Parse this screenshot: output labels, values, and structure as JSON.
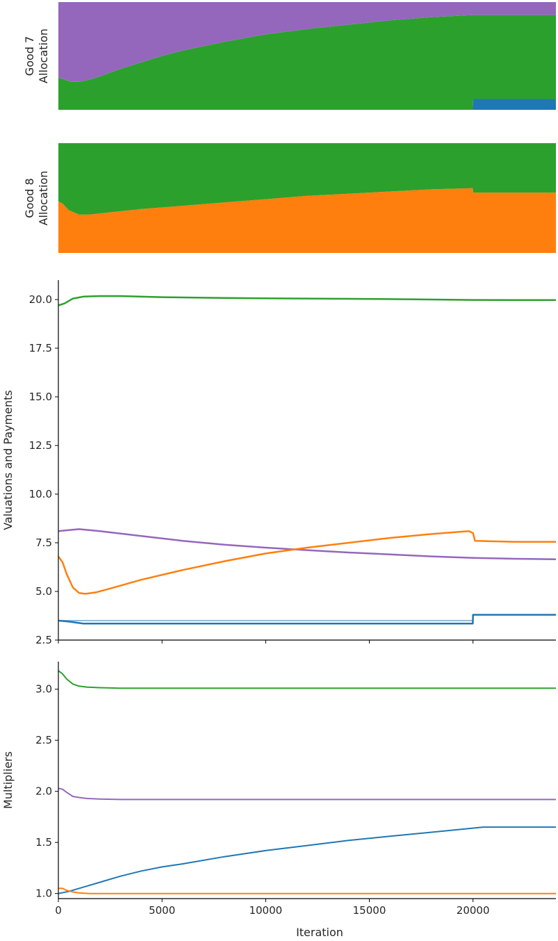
{
  "chart_data": [
    {
      "type": "area",
      "stacked": true,
      "normalized": true,
      "ylabel_lines": [
        "Good 7",
        "Allocation"
      ],
      "x": [
        0,
        300,
        600,
        1000,
        1500,
        2000,
        3000,
        4000,
        5000,
        6000,
        8000,
        10000,
        12000,
        14000,
        16000,
        18000,
        19990,
        20010,
        21000,
        22000,
        23000,
        24000
      ],
      "xlim": [
        0,
        24000
      ],
      "ylim": [
        0,
        1
      ],
      "axes_visible": false,
      "series": [
        {
          "color": "#1f77b4",
          "values": [
            0,
            0,
            0,
            0,
            0,
            0,
            0,
            0,
            0,
            0,
            0,
            0,
            0,
            0,
            0,
            0,
            0,
            0.1,
            0.1,
            0.1,
            0.1,
            0.1
          ]
        },
        {
          "color": "#2ca02c",
          "values": [
            0.3,
            0.28,
            0.26,
            0.26,
            0.28,
            0.31,
            0.38,
            0.44,
            0.5,
            0.55,
            0.63,
            0.7,
            0.75,
            0.79,
            0.83,
            0.86,
            0.88,
            0.78,
            0.78,
            0.78,
            0.78,
            0.78
          ]
        },
        {
          "color": "#9467bd",
          "values": [
            0.7,
            0.72,
            0.74,
            0.74,
            0.72,
            0.69,
            0.62,
            0.56,
            0.5,
            0.45,
            0.37,
            0.3,
            0.25,
            0.21,
            0.17,
            0.14,
            0.12,
            0.12,
            0.12,
            0.12,
            0.12,
            0.12
          ]
        }
      ]
    },
    {
      "type": "area",
      "stacked": true,
      "normalized": true,
      "ylabel_lines": [
        "Good 8",
        "Allocation"
      ],
      "x": [
        0,
        200,
        500,
        1000,
        1500,
        2500,
        4000,
        6000,
        8000,
        10000,
        12000,
        14000,
        16000,
        18000,
        19990,
        20010,
        22000,
        24000
      ],
      "xlim": [
        0,
        24000
      ],
      "ylim": [
        0,
        1
      ],
      "axes_visible": false,
      "series": [
        {
          "color": "#ff7f0e",
          "values": [
            0.47,
            0.45,
            0.39,
            0.35,
            0.35,
            0.37,
            0.4,
            0.43,
            0.46,
            0.49,
            0.52,
            0.54,
            0.56,
            0.58,
            0.59,
            0.55,
            0.55,
            0.55
          ]
        },
        {
          "color": "#2ca02c",
          "values": [
            0.53,
            0.55,
            0.61,
            0.65,
            0.65,
            0.63,
            0.6,
            0.57,
            0.54,
            0.51,
            0.48,
            0.46,
            0.44,
            0.42,
            0.41,
            0.45,
            0.45,
            0.45
          ]
        }
      ]
    },
    {
      "type": "line",
      "ylabel": "Valuations and Payments",
      "xlim": [
        0,
        24000
      ],
      "ylim": [
        2.5,
        21
      ],
      "yticks": [
        "2.5",
        "5.0",
        "7.5",
        "10.0",
        "12.5",
        "15.0",
        "17.5",
        "20.0"
      ],
      "show_xtick_labels": false,
      "series": [
        {
          "color": "#2ca02c",
          "width": 2.5,
          "x": [
            0,
            300,
            700,
            1200,
            2000,
            3000,
            5000,
            8000,
            12000,
            16000,
            20000,
            22000,
            24000
          ],
          "values": [
            19.7,
            19.8,
            20.05,
            20.15,
            20.18,
            20.18,
            20.12,
            20.08,
            20.05,
            20.02,
            19.98,
            19.97,
            19.97
          ]
        },
        {
          "color": "#9467bd",
          "width": 2.5,
          "x": [
            0,
            500,
            1000,
            2000,
            4000,
            6000,
            8000,
            10000,
            12000,
            14000,
            16000,
            18000,
            20000,
            22000,
            24000
          ],
          "values": [
            8.1,
            8.15,
            8.2,
            8.1,
            7.85,
            7.6,
            7.4,
            7.25,
            7.12,
            7.0,
            6.9,
            6.8,
            6.72,
            6.68,
            6.65
          ]
        },
        {
          "color": "#ff7f0e",
          "width": 2.5,
          "x": [
            0,
            200,
            400,
            700,
            1000,
            1300,
            1800,
            2500,
            4000,
            6000,
            8000,
            10000,
            12000,
            14000,
            16000,
            18000,
            19800,
            20000,
            20100,
            22000,
            24000
          ],
          "values": [
            6.8,
            6.5,
            5.9,
            5.2,
            4.92,
            4.88,
            4.95,
            5.15,
            5.6,
            6.1,
            6.55,
            6.95,
            7.25,
            7.5,
            7.75,
            7.95,
            8.1,
            8.0,
            7.6,
            7.55,
            7.55
          ]
        },
        {
          "color": "#8fbbd9",
          "width": 2.0,
          "x": [
            0,
            20000
          ],
          "values": [
            3.5,
            3.5
          ]
        },
        {
          "color": "#1f77b4",
          "width": 2.5,
          "x": [
            0,
            500,
            1200,
            2000,
            19990,
            20000,
            22000,
            24000
          ],
          "values": [
            3.5,
            3.45,
            3.35,
            3.35,
            3.35,
            3.8,
            3.8,
            3.8
          ]
        }
      ]
    },
    {
      "type": "line",
      "ylabel": "Multipliers",
      "xlabel": "Iteration",
      "xlim": [
        0,
        24000
      ],
      "ylim": [
        0.95,
        3.27
      ],
      "xticks": [
        "0",
        "5000",
        "10000",
        "15000",
        "20000"
      ],
      "yticks": [
        "1.0",
        "1.5",
        "2.0",
        "2.5",
        "3.0"
      ],
      "series": [
        {
          "color": "#2ca02c",
          "width": 2.0,
          "x": [
            0,
            200,
            400,
            700,
            1000,
            1400,
            2000,
            3000,
            24000
          ],
          "values": [
            3.18,
            3.15,
            3.1,
            3.05,
            3.03,
            3.02,
            3.015,
            3.01,
            3.01
          ]
        },
        {
          "color": "#9467bd",
          "width": 2.0,
          "x": [
            0,
            200,
            400,
            700,
            1000,
            1400,
            2000,
            3000,
            24000
          ],
          "values": [
            2.03,
            2.02,
            1.99,
            1.95,
            1.94,
            1.93,
            1.925,
            1.92,
            1.92
          ]
        },
        {
          "color": "#1f77b4",
          "width": 2.0,
          "x": [
            0,
            500,
            1000,
            2000,
            3000,
            4000,
            5000,
            6000,
            8000,
            10000,
            12000,
            14000,
            16000,
            18000,
            20500,
            24000
          ],
          "values": [
            1.0,
            1.02,
            1.05,
            1.11,
            1.17,
            1.22,
            1.26,
            1.29,
            1.36,
            1.42,
            1.47,
            1.52,
            1.56,
            1.6,
            1.65,
            1.65
          ]
        },
        {
          "color": "#ff7f0e",
          "width": 2.0,
          "x": [
            0,
            200,
            400,
            700,
            1000,
            1500,
            24000
          ],
          "values": [
            1.05,
            1.05,
            1.03,
            1.015,
            1.005,
            1.0,
            1.0
          ]
        }
      ]
    }
  ]
}
